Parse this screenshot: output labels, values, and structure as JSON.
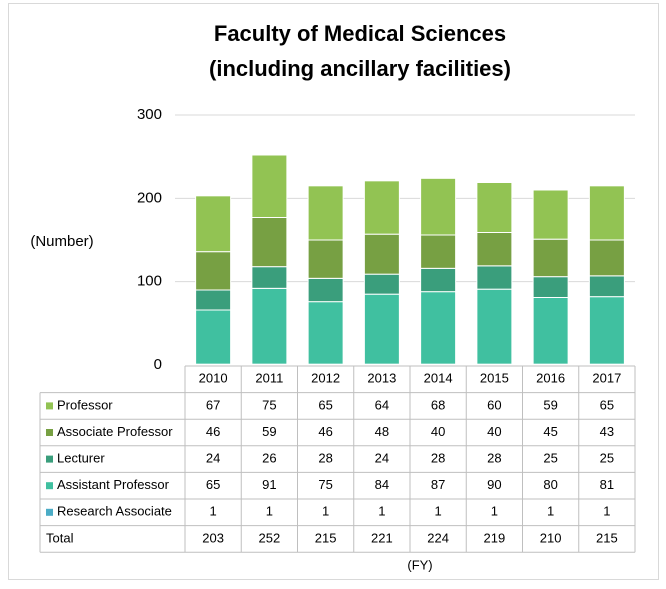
{
  "chart_data": {
    "type": "stacked_bar",
    "title": "Faculty of Medical Sciences",
    "subtitle": "(including ancillary facilities)",
    "y_label": "(Number)",
    "x_label": "(FY)",
    "categories": [
      "2010",
      "2011",
      "2012",
      "2013",
      "2014",
      "2015",
      "2016",
      "2017"
    ],
    "series": [
      {
        "name": "Professor",
        "color": "#92c353",
        "values": [
          67,
          75,
          65,
          64,
          68,
          60,
          59,
          65
        ]
      },
      {
        "name": "Associate Professor",
        "color": "#77a043",
        "values": [
          46,
          59,
          46,
          48,
          40,
          40,
          45,
          43
        ]
      },
      {
        "name": "Lecturer",
        "color": "#3a9e7c",
        "values": [
          24,
          26,
          28,
          24,
          28,
          28,
          25,
          25
        ]
      },
      {
        "name": "Assistant Professor",
        "color": "#40c0a0",
        "values": [
          65,
          91,
          75,
          84,
          87,
          90,
          80,
          81
        ]
      },
      {
        "name": "Research Associate",
        "color": "#4bacc6",
        "values": [
          1,
          1,
          1,
          1,
          1,
          1,
          1,
          1
        ]
      }
    ],
    "totals_label": "Total",
    "totals": [
      203,
      252,
      215,
      221,
      224,
      219,
      210,
      215
    ],
    "ylim": [
      0,
      300
    ],
    "yticks": [
      0,
      100,
      200,
      300
    ],
    "grid": true
  }
}
